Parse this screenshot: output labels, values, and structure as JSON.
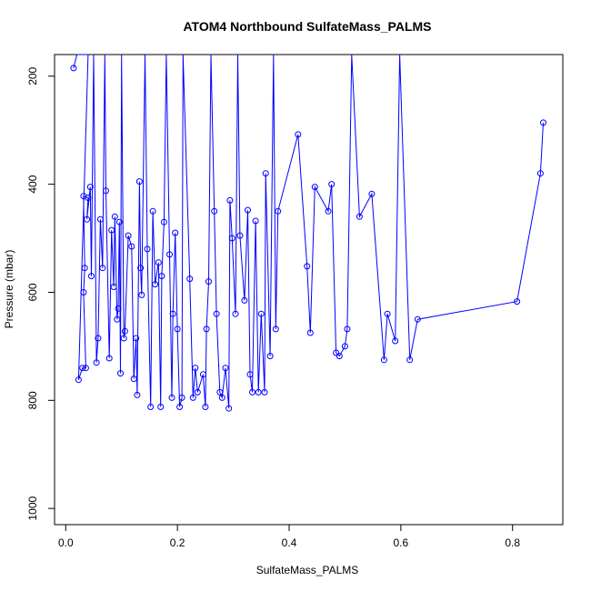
{
  "chart_data": {
    "type": "line",
    "title": "ATOM4 Northbound SulfateMass_PALMS",
    "xlabel": "SulfateMass_PALMS",
    "ylabel": "Pressure (mbar)",
    "xlim": [
      -0.02,
      0.89
    ],
    "ylim": [
      1030,
      160
    ],
    "y_reversed": true,
    "grid": false,
    "line_color": "#0000ff",
    "x_ticks": [
      0.0,
      0.2,
      0.4,
      0.6,
      0.8
    ],
    "y_ticks": [
      200,
      400,
      600,
      800,
      1000
    ],
    "x_tick_labels": [
      "0.0",
      "0.2",
      "0.4",
      "0.6",
      "0.8"
    ],
    "y_tick_labels": [
      "200",
      "400",
      "600",
      "800",
      "1000"
    ],
    "series": [
      {
        "points": [
          [
            0.014,
            185
          ],
          [
            0.02,
            160
          ],
          [
            0.03,
            160
          ],
          [
            0.04,
            160
          ],
          [
            0.023,
            762
          ],
          [
            0.03,
            740
          ],
          [
            0.036,
            740
          ],
          [
            0.032,
            600
          ],
          [
            0.034,
            555
          ],
          [
            0.032,
            422
          ],
          [
            0.04,
            425
          ],
          [
            0.038,
            465
          ],
          [
            0.044,
            405
          ],
          [
            0.046,
            570
          ],
          [
            0.05,
            160
          ],
          [
            0.055,
            730
          ],
          [
            0.058,
            685
          ],
          [
            0.062,
            465
          ],
          [
            0.066,
            555
          ],
          [
            0.07,
            160
          ],
          [
            0.072,
            412
          ],
          [
            0.078,
            722
          ],
          [
            0.082,
            485
          ],
          [
            0.086,
            590
          ],
          [
            0.088,
            460
          ],
          [
            0.092,
            650
          ],
          [
            0.094,
            630
          ],
          [
            0.096,
            470
          ],
          [
            0.098,
            750
          ],
          [
            0.1,
            160
          ],
          [
            0.104,
            685
          ],
          [
            0.106,
            672
          ],
          [
            0.112,
            495
          ],
          [
            0.118,
            515
          ],
          [
            0.122,
            760
          ],
          [
            0.126,
            685
          ],
          [
            0.128,
            790
          ],
          [
            0.132,
            395
          ],
          [
            0.134,
            555
          ],
          [
            0.136,
            605
          ],
          [
            0.142,
            160
          ],
          [
            0.146,
            520
          ],
          [
            0.152,
            812
          ],
          [
            0.156,
            450
          ],
          [
            0.16,
            585
          ],
          [
            0.166,
            545
          ],
          [
            0.17,
            812
          ],
          [
            0.172,
            570
          ],
          [
            0.176,
            470
          ],
          [
            0.18,
            160
          ],
          [
            0.186,
            530
          ],
          [
            0.19,
            795
          ],
          [
            0.192,
            640
          ],
          [
            0.196,
            490
          ],
          [
            0.2,
            668
          ],
          [
            0.204,
            812
          ],
          [
            0.208,
            795
          ],
          [
            0.21,
            160
          ],
          [
            0.222,
            575
          ],
          [
            0.228,
            795
          ],
          [
            0.232,
            740
          ],
          [
            0.236,
            785
          ],
          [
            0.246,
            752
          ],
          [
            0.25,
            812
          ],
          [
            0.252,
            668
          ],
          [
            0.256,
            580
          ],
          [
            0.26,
            160
          ],
          [
            0.266,
            450
          ],
          [
            0.27,
            640
          ],
          [
            0.276,
            785
          ],
          [
            0.28,
            795
          ],
          [
            0.286,
            740
          ],
          [
            0.292,
            815
          ],
          [
            0.294,
            430
          ],
          [
            0.298,
            500
          ],
          [
            0.304,
            640
          ],
          [
            0.308,
            160
          ],
          [
            0.312,
            495
          ],
          [
            0.32,
            615
          ],
          [
            0.326,
            448
          ],
          [
            0.33,
            752
          ],
          [
            0.334,
            785
          ],
          [
            0.34,
            468
          ],
          [
            0.345,
            785
          ],
          [
            0.35,
            640
          ],
          [
            0.356,
            785
          ],
          [
            0.358,
            380
          ],
          [
            0.366,
            718
          ],
          [
            0.372,
            160
          ],
          [
            0.376,
            668
          ],
          [
            0.38,
            450
          ],
          [
            0.416,
            308
          ],
          [
            0.432,
            552
          ],
          [
            0.438,
            675
          ],
          [
            0.446,
            405
          ],
          [
            0.47,
            450
          ],
          [
            0.476,
            400
          ],
          [
            0.484,
            712
          ],
          [
            0.49,
            718
          ],
          [
            0.5,
            700
          ],
          [
            0.504,
            668
          ],
          [
            0.512,
            160
          ],
          [
            0.526,
            460
          ],
          [
            0.548,
            418
          ],
          [
            0.57,
            725
          ],
          [
            0.576,
            640
          ],
          [
            0.59,
            690
          ],
          [
            0.598,
            160
          ],
          [
            0.616,
            725
          ],
          [
            0.63,
            650
          ],
          [
            0.808,
            617
          ],
          [
            0.85,
            380
          ],
          [
            0.855,
            286
          ]
        ]
      }
    ]
  }
}
